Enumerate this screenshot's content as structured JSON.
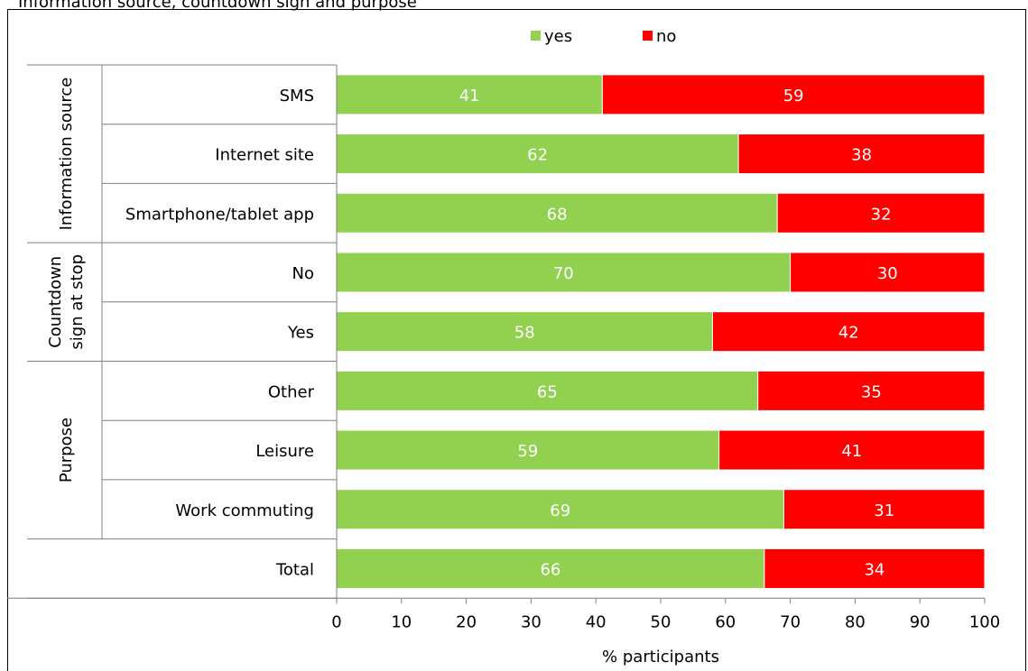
{
  "chart_data": {
    "type": "bar",
    "stacked": true,
    "orientation": "horizontal",
    "title": "Information source, countdown sign and purpose",
    "xlabel": "% participants",
    "ylabel": "",
    "xlim": [
      0,
      100
    ],
    "xticks": [
      "0",
      "10",
      "20",
      "30",
      "40",
      "50",
      "60",
      "70",
      "80",
      "90",
      "100"
    ],
    "categories": [
      "SMS",
      "Internet site",
      "Smartphone/tablet app",
      "No",
      "Yes",
      "Other",
      "Leisure",
      "Work commuting",
      "Total"
    ],
    "groups": [
      {
        "label": "Information source",
        "categories": [
          "SMS",
          "Internet site",
          "Smartphone/tablet app"
        ]
      },
      {
        "label": "Countdown sign at stop",
        "label_lines": [
          "Countdown",
          "sign at stop"
        ],
        "categories": [
          "No",
          "Yes"
        ]
      },
      {
        "label": "Purpose",
        "categories": [
          "Other",
          "Leisure",
          "Work commuting"
        ]
      },
      {
        "label": "",
        "categories": [
          "Total"
        ]
      }
    ],
    "series": [
      {
        "name": "yes",
        "color": "#92d050",
        "values": [
          41,
          62,
          68,
          70,
          58,
          65,
          59,
          69,
          66
        ]
      },
      {
        "name": "no",
        "color": "#ff0000",
        "values": [
          59,
          38,
          32,
          30,
          42,
          35,
          41,
          31,
          34
        ]
      }
    ],
    "legend": "top-center",
    "grid": false
  }
}
